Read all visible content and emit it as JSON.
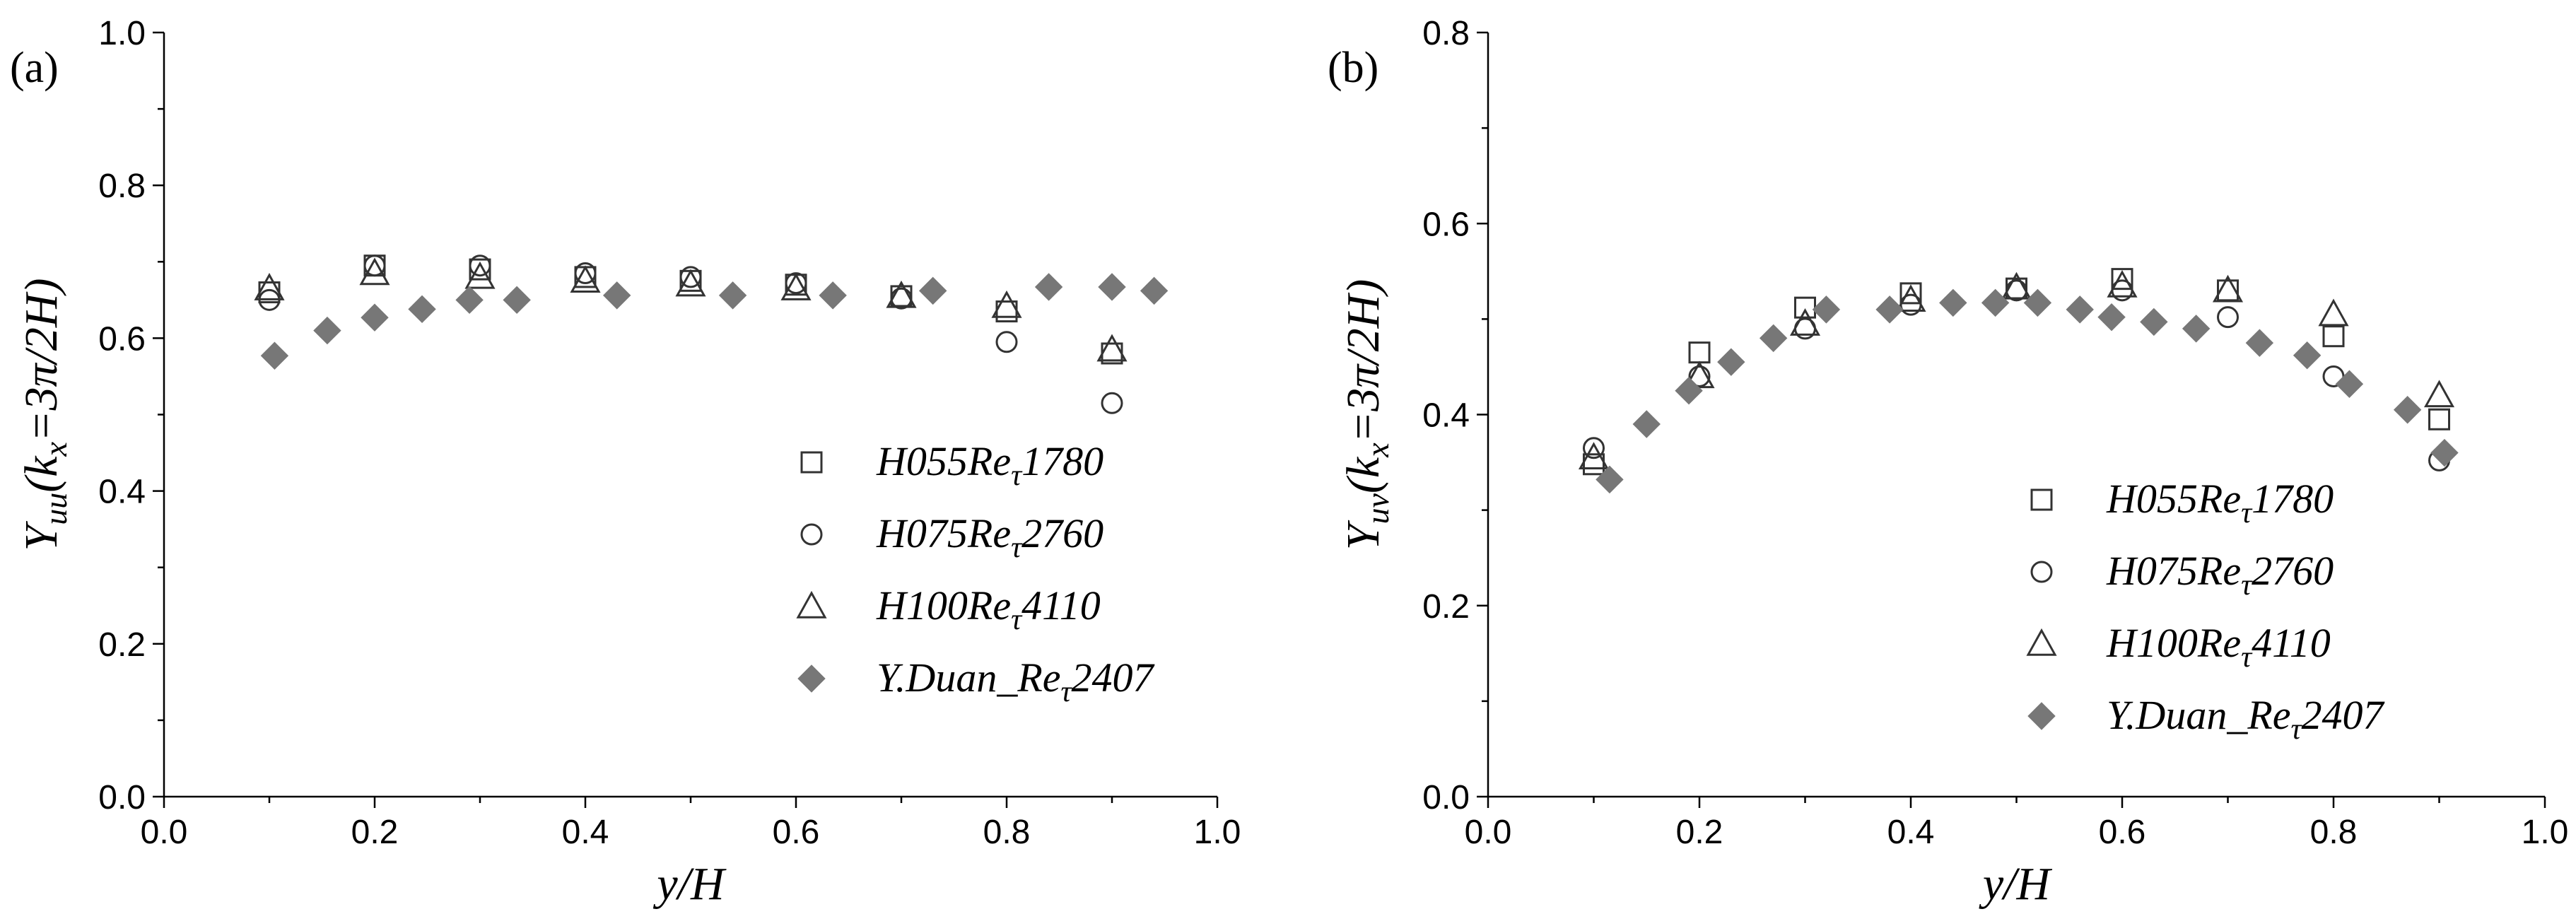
{
  "chart_data": [
    {
      "type": "scatter",
      "panel_label": "(a)",
      "xlabel": "y/H",
      "ylabel": {
        "main": "Υ",
        "sub": "uu",
        "rest1": "(k",
        "sub2": "x",
        "rest2": "=3π/2H)"
      },
      "xlim": [
        0.0,
        1.0
      ],
      "ylim": [
        0.0,
        1.0
      ],
      "xticks": [
        "0.0",
        "0.2",
        "0.4",
        "0.6",
        "0.8",
        "1.0"
      ],
      "yticks": [
        "0.0",
        "0.2",
        "0.4",
        "0.6",
        "0.8",
        "1.0"
      ],
      "xtick_values": [
        0.0,
        0.2,
        0.4,
        0.6,
        0.8,
        1.0
      ],
      "ytick_values": [
        0.0,
        0.2,
        0.4,
        0.6,
        0.8,
        1.0
      ],
      "grid": false,
      "legend_position": "bottom-right",
      "series": [
        {
          "name": "H055Reτ1780",
          "label": {
            "a": "H055Re",
            "sub": "τ",
            "b": "1780"
          },
          "marker": "square",
          "x": [
            0.1,
            0.2,
            0.3,
            0.4,
            0.5,
            0.6,
            0.7,
            0.8,
            0.9
          ],
          "y": [
            0.66,
            0.695,
            0.69,
            0.68,
            0.675,
            0.67,
            0.655,
            0.635,
            0.58
          ]
        },
        {
          "name": "H075Reτ2760",
          "label": {
            "a": "H075Re",
            "sub": "τ",
            "b": "2760"
          },
          "marker": "circle",
          "x": [
            0.1,
            0.2,
            0.3,
            0.4,
            0.5,
            0.6,
            0.7,
            0.8,
            0.9
          ],
          "y": [
            0.65,
            0.695,
            0.695,
            0.685,
            0.68,
            0.672,
            0.652,
            0.595,
            0.515
          ]
        },
        {
          "name": "H100Reτ4110",
          "label": {
            "a": "H100Re",
            "sub": "τ",
            "b": "4110"
          },
          "marker": "triangle",
          "x": [
            0.1,
            0.2,
            0.3,
            0.4,
            0.5,
            0.6,
            0.7,
            0.8,
            0.9
          ],
          "y": [
            0.665,
            0.685,
            0.68,
            0.675,
            0.67,
            0.665,
            0.655,
            0.642,
            0.585
          ]
        },
        {
          "name": "Y.Duan_Reτ2407",
          "label": {
            "a": "Y.Duan_Re",
            "sub": "τ",
            "b": "2407"
          },
          "marker": "diamond",
          "x": [
            0.105,
            0.155,
            0.2,
            0.245,
            0.29,
            0.335,
            0.43,
            0.54,
            0.635,
            0.73,
            0.84,
            0.9,
            0.94
          ],
          "y": [
            0.577,
            0.61,
            0.627,
            0.638,
            0.65,
            0.65,
            0.656,
            0.656,
            0.656,
            0.662,
            0.667,
            0.667,
            0.662
          ]
        }
      ]
    },
    {
      "type": "scatter",
      "panel_label": "(b)",
      "xlabel": "y/H",
      "ylabel": {
        "main": "Υ",
        "sub": "uv",
        "rest1": "(k",
        "sub2": "x",
        "rest2": "=3π/2H)"
      },
      "xlim": [
        0.0,
        1.0
      ],
      "ylim": [
        0.0,
        0.8
      ],
      "xticks": [
        "0.0",
        "0.2",
        "0.4",
        "0.6",
        "0.8",
        "1.0"
      ],
      "yticks": [
        "0.0",
        "0.2",
        "0.4",
        "0.6",
        "0.8"
      ],
      "xtick_values": [
        0.0,
        0.2,
        0.4,
        0.6,
        0.8,
        1.0
      ],
      "ytick_values": [
        0.0,
        0.2,
        0.4,
        0.6,
        0.8
      ],
      "grid": false,
      "legend_position": "bottom-right",
      "series": [
        {
          "name": "H055Reτ1780",
          "label": {
            "a": "H055Re",
            "sub": "τ",
            "b": "1780"
          },
          "marker": "square",
          "x": [
            0.1,
            0.2,
            0.3,
            0.4,
            0.5,
            0.6,
            0.7,
            0.8,
            0.9
          ],
          "y": [
            0.348,
            0.465,
            0.512,
            0.527,
            0.532,
            0.542,
            0.53,
            0.482,
            0.395
          ]
        },
        {
          "name": "H075Reτ2760",
          "label": {
            "a": "H075Re",
            "sub": "τ",
            "b": "2760"
          },
          "marker": "circle",
          "x": [
            0.1,
            0.2,
            0.3,
            0.4,
            0.5,
            0.6,
            0.7,
            0.8,
            0.9
          ],
          "y": [
            0.365,
            0.44,
            0.49,
            0.515,
            0.53,
            0.53,
            0.502,
            0.44,
            0.352
          ]
        },
        {
          "name": "H100Reτ4110",
          "label": {
            "a": "H100Re",
            "sub": "τ",
            "b": "4110"
          },
          "marker": "triangle",
          "x": [
            0.1,
            0.2,
            0.3,
            0.4,
            0.5,
            0.6,
            0.7,
            0.8,
            0.9
          ],
          "y": [
            0.355,
            0.44,
            0.495,
            0.52,
            0.533,
            0.535,
            0.53,
            0.505,
            0.42
          ]
        },
        {
          "name": "Y.Duan_Reτ2407",
          "label": {
            "a": "Y.Duan_Re",
            "sub": "τ",
            "b": "2407"
          },
          "marker": "diamond",
          "x": [
            0.115,
            0.15,
            0.19,
            0.23,
            0.27,
            0.32,
            0.38,
            0.44,
            0.48,
            0.52,
            0.56,
            0.59,
            0.63,
            0.67,
            0.73,
            0.775,
            0.815,
            0.87,
            0.905
          ],
          "y": [
            0.332,
            0.39,
            0.425,
            0.455,
            0.48,
            0.51,
            0.51,
            0.517,
            0.517,
            0.517,
            0.51,
            0.502,
            0.497,
            0.49,
            0.475,
            0.462,
            0.432,
            0.405,
            0.36
          ]
        }
      ]
    }
  ],
  "colors": {
    "open_marker_stroke": "#333333",
    "filled_marker": "#777777",
    "axis": "#000000"
  }
}
